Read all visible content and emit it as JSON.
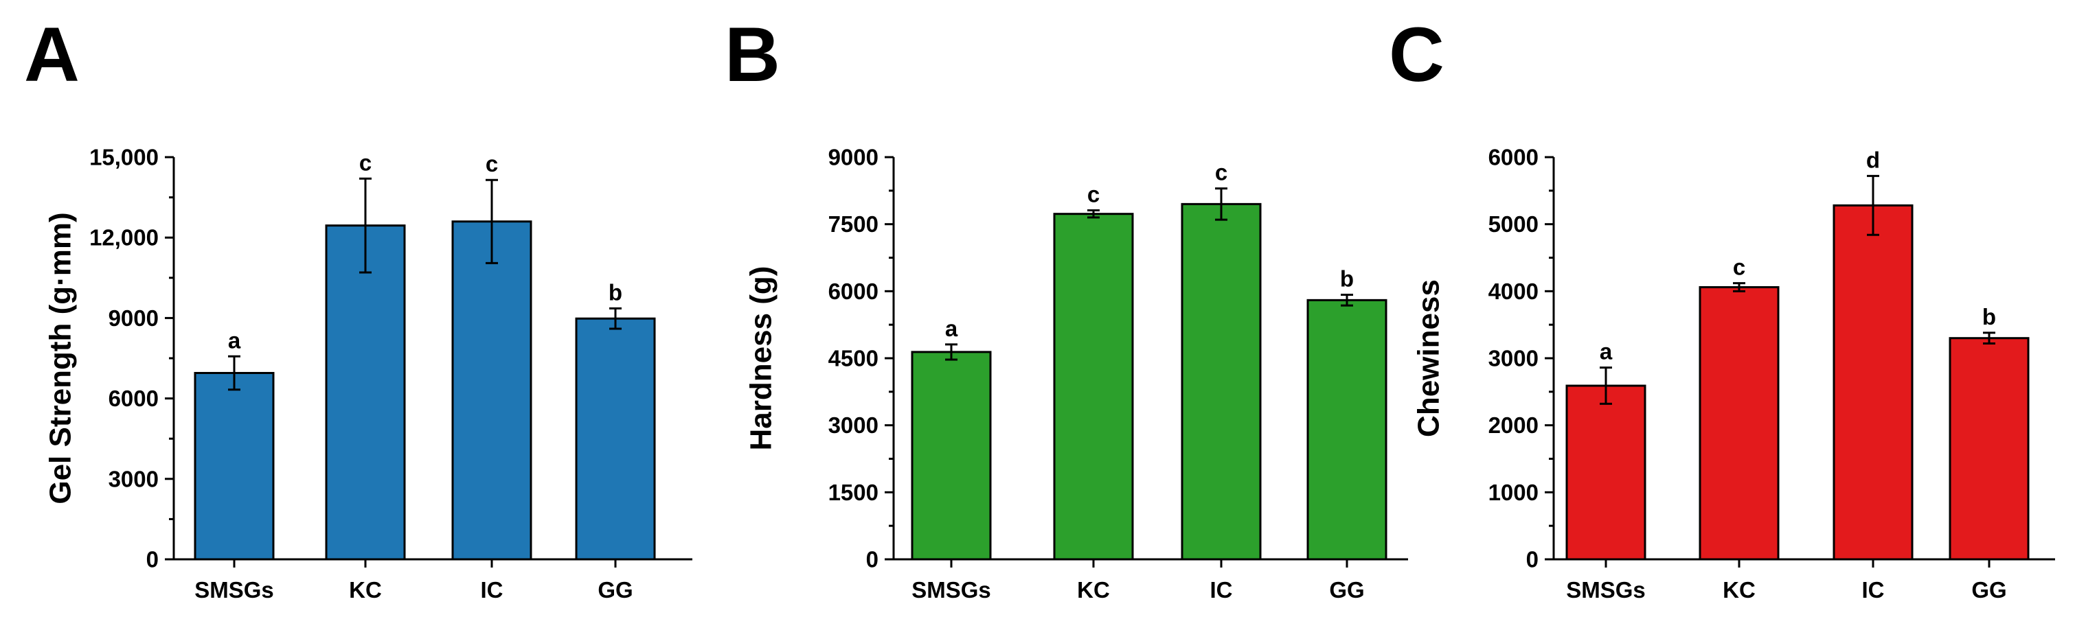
{
  "chart_data": [
    {
      "panel": "A",
      "type": "bar",
      "categories": [
        "SMSGs",
        "KC",
        "IC",
        "GG"
      ],
      "values": [
        6950,
        12450,
        12600,
        8980
      ],
      "errors": [
        620,
        1750,
        1550,
        380
      ],
      "significance": [
        "a",
        "c",
        "c",
        "b"
      ],
      "ylabel": "Gel Strength (g·mm)",
      "ylim": [
        0,
        15000
      ],
      "yticks": [
        0,
        3000,
        6000,
        9000,
        12000,
        15000
      ],
      "ytick_labels": [
        "0",
        "3000",
        "6000",
        "9000",
        "12,000",
        "15,000"
      ],
      "color": "#1f77b4"
    },
    {
      "panel": "B",
      "type": "bar",
      "categories": [
        "SMSGs",
        "KC",
        "IC",
        "GG"
      ],
      "values": [
        4640,
        7730,
        7950,
        5800
      ],
      "errors": [
        170,
        80,
        350,
        120
      ],
      "significance": [
        "a",
        "c",
        "c",
        "b"
      ],
      "ylabel": "Hardness (g)",
      "ylim": [
        0,
        9000
      ],
      "yticks": [
        0,
        1500,
        3000,
        4500,
        6000,
        7500,
        9000
      ],
      "ytick_labels": [
        "0",
        "1500",
        "3000",
        "4500",
        "6000",
        "7500",
        "9000"
      ],
      "color": "#2ca02c"
    },
    {
      "panel": "C",
      "type": "bar",
      "categories": [
        "SMSGs",
        "KC",
        "IC",
        "GG"
      ],
      "values": [
        2590,
        4060,
        5280,
        3300
      ],
      "errors": [
        270,
        60,
        440,
        80
      ],
      "significance": [
        "a",
        "c",
        "d",
        "b"
      ],
      "ylabel": "Chewiness",
      "ylim": [
        0,
        6000
      ],
      "yticks": [
        0,
        1000,
        2000,
        3000,
        4000,
        5000,
        6000
      ],
      "ytick_labels": [
        "0",
        "1000",
        "2000",
        "3000",
        "4000",
        "5000",
        "6000"
      ],
      "color": "#e31a1c"
    }
  ]
}
